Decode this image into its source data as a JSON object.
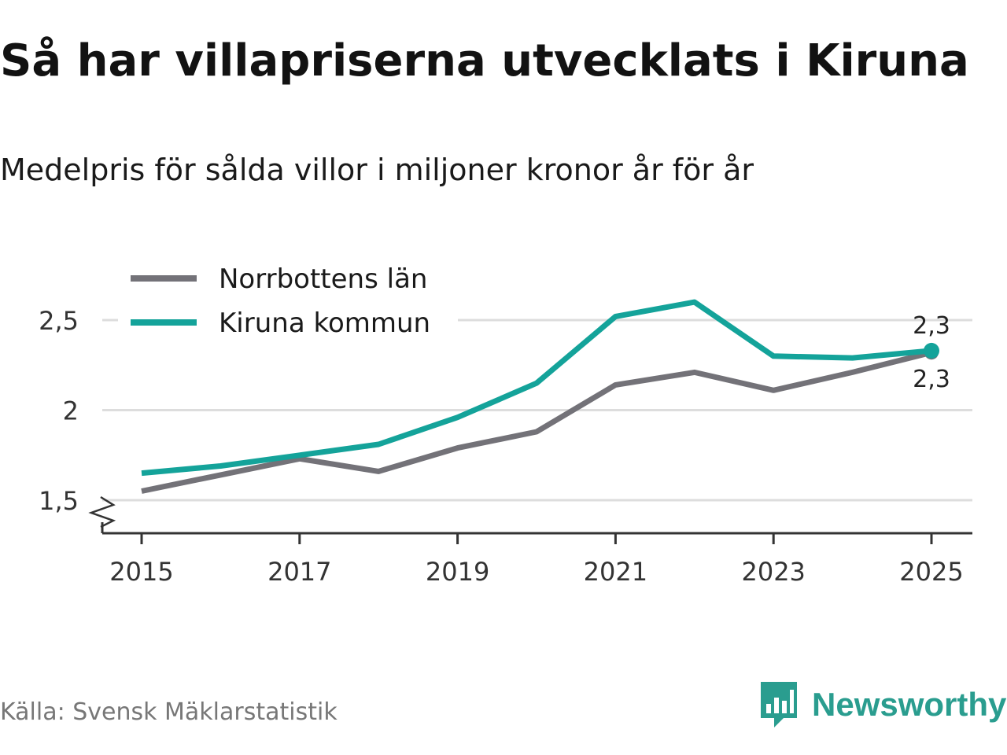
{
  "title": "Så har villapriserna utvecklats i Kiruna",
  "subtitle": "Medelpris för sålda villor i miljoner kronor år för år",
  "source": "Källa: Svensk Mäklarstatistik",
  "brand": {
    "name": "Newsworthy",
    "color": "#2a9d8f",
    "icon": "bar-chart-speech-bubble-icon"
  },
  "colors": {
    "norrbotten": "#737278",
    "kiruna": "#14a39a",
    "grid": "#dddddd",
    "axis": "#333333"
  },
  "chart_data": {
    "type": "line",
    "title": "Så har villapriserna utvecklats i Kiruna",
    "subtitle": "Medelpris för sålda villor i miljoner kronor år för år",
    "xlabel": "",
    "ylabel": "",
    "x": [
      2015,
      2016,
      2017,
      2018,
      2019,
      2020,
      2021,
      2022,
      2023,
      2024,
      2025
    ],
    "xticks": [
      "2015",
      "2017",
      "2019",
      "2021",
      "2023",
      "2025"
    ],
    "yticks": [
      "1,5",
      "2",
      "2,5"
    ],
    "ylim": [
      1.32,
      2.6
    ],
    "axis_break": true,
    "grid": true,
    "legend_position": "top-left",
    "series": [
      {
        "name": "Norrbottens län",
        "key": "norrbotten",
        "values": [
          1.55,
          1.64,
          1.73,
          1.66,
          1.79,
          1.88,
          2.14,
          2.21,
          2.11,
          2.21,
          2.32
        ],
        "end_label": "2,3"
      },
      {
        "name": "Kiruna kommun",
        "key": "kiruna",
        "values": [
          1.65,
          1.69,
          1.75,
          1.81,
          1.96,
          2.15,
          2.52,
          2.6,
          2.3,
          2.29,
          2.33
        ],
        "end_label": "2,3"
      }
    ]
  }
}
